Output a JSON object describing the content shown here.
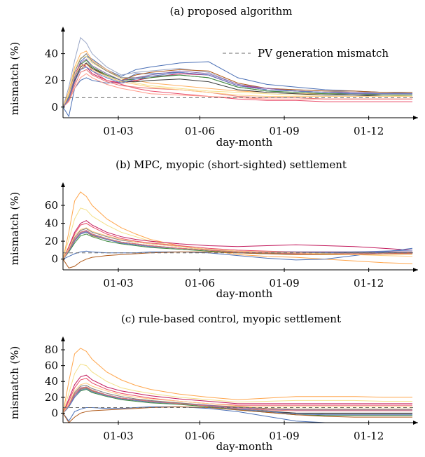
{
  "legend_label": "PV generation mismatch",
  "chart_data": [
    {
      "type": "line",
      "title": "(a) proposed algorithm",
      "xlabel": "day-month",
      "ylabel": "mismatch (%)",
      "xticks": [
        "01-03",
        "01-06",
        "01-09",
        "01-12"
      ],
      "yticks": [
        0,
        20,
        40
      ],
      "ylim": [
        -8,
        55
      ],
      "x": [
        0.0,
        0.2,
        0.4,
        0.6,
        0.8,
        1.0,
        1.5,
        2.0,
        2.5,
        3.0,
        4.0,
        5.0,
        6.0,
        7.0,
        8.0,
        9.0,
        10.0,
        11.0,
        12.0
      ],
      "reference": {
        "name": "PV generation mismatch",
        "value": 7
      },
      "series": [
        {
          "color": "#4a6fb5",
          "values": [
            0,
            6,
            22,
            34,
            38,
            36,
            28,
            23,
            28,
            30,
            33,
            34,
            22,
            17,
            15,
            13,
            12,
            11,
            11
          ]
        },
        {
          "color": "#4a6fb5",
          "values": [
            0,
            -7,
            14,
            20,
            22,
            20,
            18,
            19,
            25,
            25,
            26,
            24,
            16,
            13,
            12,
            11,
            10,
            10,
            10
          ]
        },
        {
          "color": "#9aa7c7",
          "values": [
            0,
            15,
            35,
            52,
            48,
            40,
            30,
            24,
            26,
            27,
            29,
            26,
            17,
            14,
            13,
            12,
            11,
            11,
            10
          ]
        },
        {
          "color": "#ffb060",
          "values": [
            0,
            12,
            30,
            40,
            42,
            35,
            28,
            22,
            20,
            18,
            16,
            14,
            12,
            11,
            10,
            10,
            10,
            9,
            9
          ]
        },
        {
          "color": "#f4e08a",
          "values": [
            0,
            10,
            28,
            37,
            38,
            33,
            27,
            21,
            18,
            16,
            14,
            12,
            11,
            10,
            9,
            9,
            9,
            9,
            8
          ]
        },
        {
          "color": "#b05a1a",
          "values": [
            0,
            5,
            20,
            28,
            32,
            29,
            24,
            20,
            24,
            26,
            28,
            27,
            18,
            14,
            13,
            12,
            12,
            11,
            11
          ]
        },
        {
          "color": "#c2185b",
          "values": [
            0,
            8,
            24,
            33,
            30,
            25,
            20,
            18,
            20,
            22,
            25,
            24,
            16,
            14,
            12,
            11,
            10,
            10,
            10
          ]
        },
        {
          "color": "#e94d6a",
          "values": [
            0,
            6,
            18,
            30,
            33,
            27,
            20,
            17,
            14,
            12,
            10,
            8,
            6,
            5,
            5,
            4,
            4,
            4,
            4
          ]
        },
        {
          "color": "#ff9a8a",
          "values": [
            0,
            4,
            14,
            22,
            25,
            22,
            17,
            14,
            12,
            10,
            9,
            8,
            7,
            6,
            6,
            6,
            6,
            6,
            6
          ]
        },
        {
          "color": "#7a7a7a",
          "values": [
            0,
            9,
            26,
            36,
            40,
            34,
            27,
            22,
            22,
            23,
            24,
            22,
            15,
            12,
            11,
            10,
            9,
            9,
            9
          ]
        },
        {
          "color": "#3d8b3d",
          "values": [
            0,
            8,
            22,
            32,
            35,
            30,
            24,
            20,
            21,
            22,
            24,
            22,
            15,
            12,
            11,
            10,
            10,
            9,
            9
          ]
        },
        {
          "color": "#3a3a3a",
          "values": [
            0,
            7,
            20,
            30,
            33,
            29,
            23,
            19,
            19,
            20,
            21,
            19,
            13,
            11,
            10,
            9,
            9,
            8,
            8
          ]
        },
        {
          "color": "#8c6bb1",
          "values": [
            0,
            7,
            22,
            33,
            36,
            31,
            25,
            20,
            22,
            24,
            27,
            25,
            17,
            14,
            12,
            11,
            11,
            10,
            10
          ]
        },
        {
          "color": "#e57373",
          "values": [
            0,
            5,
            16,
            26,
            28,
            24,
            19,
            16,
            15,
            14,
            13,
            11,
            8,
            7,
            7,
            6,
            6,
            6,
            6
          ]
        },
        {
          "color": "#ffcc80",
          "values": [
            0,
            9,
            24,
            31,
            32,
            28,
            23,
            19,
            17,
            15,
            13,
            11,
            9,
            8,
            8,
            8,
            8,
            8,
            8
          ]
        },
        {
          "color": "#5c7cc2",
          "values": [
            0,
            6,
            19,
            28,
            30,
            27,
            22,
            18,
            21,
            23,
            26,
            24,
            16,
            13,
            12,
            11,
            10,
            10,
            10
          ]
        }
      ]
    },
    {
      "type": "line",
      "title": "(b) MPC, myopic (short-sighted) settlement",
      "xlabel": "day-month",
      "ylabel": "mismatch (%)",
      "xticks": [
        "01-03",
        "01-06",
        "01-09",
        "01-12"
      ],
      "yticks": [
        0,
        20,
        40,
        60
      ],
      "ylim": [
        -12,
        78
      ],
      "x": [
        0.0,
        0.2,
        0.4,
        0.6,
        0.8,
        1.0,
        1.5,
        2.0,
        2.5,
        3.0,
        4.0,
        5.0,
        6.0,
        7.0,
        8.0,
        9.0,
        10.0,
        11.0,
        12.0
      ],
      "reference": {
        "name": "PV generation mismatch",
        "value": 7
      },
      "series": [
        {
          "color": "#ffa64d",
          "values": [
            0,
            30,
            65,
            75,
            70,
            60,
            45,
            35,
            28,
            22,
            15,
            10,
            5,
            3,
            2,
            0,
            -2,
            -4,
            -5
          ]
        },
        {
          "color": "#f4e08a",
          "values": [
            0,
            22,
            45,
            57,
            55,
            48,
            38,
            30,
            25,
            20,
            14,
            10,
            7,
            6,
            5,
            5,
            5,
            5,
            5
          ]
        },
        {
          "color": "#c2185b",
          "values": [
            0,
            14,
            30,
            40,
            43,
            38,
            30,
            25,
            22,
            20,
            17,
            15,
            14,
            15,
            16,
            15,
            14,
            12,
            10
          ]
        },
        {
          "color": "#e94d6a",
          "values": [
            0,
            12,
            28,
            38,
            40,
            36,
            28,
            23,
            20,
            18,
            15,
            12,
            10,
            9,
            8,
            8,
            8,
            8,
            8
          ]
        },
        {
          "color": "#7a7a7a",
          "values": [
            0,
            10,
            24,
            32,
            34,
            30,
            25,
            21,
            19,
            17,
            14,
            11,
            9,
            8,
            8,
            8,
            8,
            8,
            8
          ]
        },
        {
          "color": "#3a3a3a",
          "values": [
            0,
            9,
            22,
            30,
            32,
            28,
            23,
            19,
            17,
            15,
            12,
            10,
            8,
            7,
            7,
            7,
            7,
            7,
            7
          ]
        },
        {
          "color": "#b07a3a",
          "values": [
            0,
            8,
            20,
            28,
            30,
            26,
            22,
            18,
            16,
            14,
            12,
            10,
            8,
            7,
            7,
            7,
            8,
            8,
            8
          ]
        },
        {
          "color": "#3d8b3d",
          "values": [
            0,
            8,
            18,
            26,
            28,
            25,
            20,
            17,
            15,
            13,
            11,
            9,
            7,
            6,
            6,
            6,
            6,
            6,
            6
          ]
        },
        {
          "color": "#8c6bb1",
          "values": [
            0,
            9,
            21,
            29,
            31,
            27,
            22,
            18,
            16,
            14,
            12,
            10,
            8,
            8,
            8,
            8,
            8,
            8,
            8
          ]
        },
        {
          "color": "#4a6fb5",
          "values": [
            0,
            3,
            6,
            8,
            9,
            8,
            7,
            7,
            7,
            8,
            8,
            7,
            4,
            1,
            -1,
            0,
            4,
            8,
            12
          ]
        },
        {
          "color": "#5c7cc2",
          "values": [
            0,
            9,
            20,
            28,
            30,
            27,
            22,
            18,
            16,
            14,
            12,
            10,
            8,
            7,
            7,
            7,
            8,
            9,
            10
          ]
        },
        {
          "color": "#b05a1a",
          "values": [
            0,
            -10,
            -8,
            -3,
            0,
            2,
            4,
            5,
            6,
            7,
            8,
            8,
            7,
            6,
            5,
            5,
            5,
            6,
            7
          ]
        },
        {
          "color": "#e57373",
          "values": [
            0,
            10,
            22,
            30,
            32,
            28,
            23,
            19,
            17,
            15,
            12,
            10,
            8,
            7,
            6,
            6,
            6,
            6,
            6
          ]
        },
        {
          "color": "#ffcc80",
          "values": [
            0,
            12,
            26,
            33,
            35,
            31,
            26,
            22,
            19,
            17,
            14,
            11,
            9,
            8,
            7,
            6,
            5,
            4,
            3
          ]
        }
      ]
    },
    {
      "type": "line",
      "title": "(c) rule-based control, myopic settlement",
      "xlabel": "day-month",
      "ylabel": "mismatch (%)",
      "xticks": [
        "01-03",
        "01-06",
        "01-09",
        "01-12"
      ],
      "yticks": [
        0,
        20,
        40,
        60,
        80
      ],
      "ylim": [
        -12,
        88
      ],
      "x": [
        0.0,
        0.2,
        0.4,
        0.6,
        0.8,
        1.0,
        1.5,
        2.0,
        2.5,
        3.0,
        4.0,
        5.0,
        6.0,
        7.0,
        8.0,
        9.0,
        10.0,
        11.0,
        12.0
      ],
      "reference": {
        "name": "PV generation mismatch",
        "value": 7
      },
      "series": [
        {
          "color": "#ffa64d",
          "values": [
            0,
            40,
            75,
            82,
            78,
            68,
            52,
            42,
            35,
            30,
            24,
            20,
            17,
            19,
            21,
            21,
            21,
            20,
            20
          ]
        },
        {
          "color": "#f4e08a",
          "values": [
            0,
            25,
            50,
            62,
            60,
            52,
            40,
            32,
            28,
            25,
            20,
            17,
            14,
            15,
            16,
            16,
            16,
            15,
            15
          ]
        },
        {
          "color": "#c2185b",
          "values": [
            0,
            18,
            36,
            46,
            48,
            42,
            33,
            28,
            25,
            22,
            18,
            15,
            12,
            12,
            12,
            12,
            12,
            12,
            12
          ]
        },
        {
          "color": "#e94d6a",
          "values": [
            0,
            15,
            32,
            42,
            44,
            38,
            30,
            25,
            22,
            19,
            15,
            12,
            10,
            10,
            10,
            10,
            10,
            10,
            10
          ]
        },
        {
          "color": "#7a7a7a",
          "values": [
            0,
            10,
            26,
            34,
            35,
            31,
            25,
            21,
            18,
            16,
            13,
            10,
            6,
            3,
            0,
            -1,
            -1,
            -1,
            -1
          ]
        },
        {
          "color": "#3a3a3a",
          "values": [
            0,
            9,
            24,
            32,
            33,
            29,
            23,
            19,
            17,
            15,
            12,
            9,
            5,
            2,
            0,
            0,
            0,
            0,
            0
          ]
        },
        {
          "color": "#b07a3a",
          "values": [
            0,
            8,
            22,
            30,
            32,
            28,
            22,
            18,
            16,
            14,
            12,
            10,
            8,
            6,
            5,
            5,
            5,
            5,
            5
          ]
        },
        {
          "color": "#3d8b3d",
          "values": [
            0,
            8,
            20,
            28,
            30,
            26,
            21,
            17,
            15,
            13,
            11,
            8,
            4,
            1,
            -2,
            -3,
            -3,
            -3,
            -3
          ]
        },
        {
          "color": "#8c6bb1",
          "values": [
            0,
            9,
            22,
            31,
            33,
            29,
            23,
            19,
            17,
            15,
            12,
            10,
            7,
            5,
            4,
            4,
            4,
            4,
            4
          ]
        },
        {
          "color": "#4a6fb5",
          "values": [
            0,
            -10,
            2,
            5,
            7,
            7,
            6,
            6,
            7,
            8,
            8,
            6,
            2,
            -4,
            -10,
            -12,
            -12,
            -12,
            -12
          ]
        },
        {
          "color": "#5c7cc2",
          "values": [
            0,
            8,
            20,
            29,
            31,
            27,
            22,
            18,
            16,
            14,
            12,
            9,
            5,
            2,
            -1,
            -2,
            -2,
            -2,
            -2
          ]
        },
        {
          "color": "#b05a1a",
          "values": [
            0,
            -12,
            -5,
            0,
            2,
            3,
            4,
            5,
            6,
            7,
            8,
            7,
            4,
            1,
            -2,
            -4,
            -5,
            -5,
            -5
          ]
        },
        {
          "color": "#e57373",
          "values": [
            0,
            10,
            24,
            32,
            33,
            29,
            23,
            19,
            17,
            15,
            12,
            9,
            6,
            4,
            3,
            3,
            3,
            3,
            3
          ]
        },
        {
          "color": "#ffcc80",
          "values": [
            0,
            12,
            28,
            36,
            38,
            34,
            28,
            23,
            20,
            18,
            15,
            12,
            9,
            8,
            8,
            8,
            8,
            8,
            8
          ]
        }
      ]
    }
  ]
}
